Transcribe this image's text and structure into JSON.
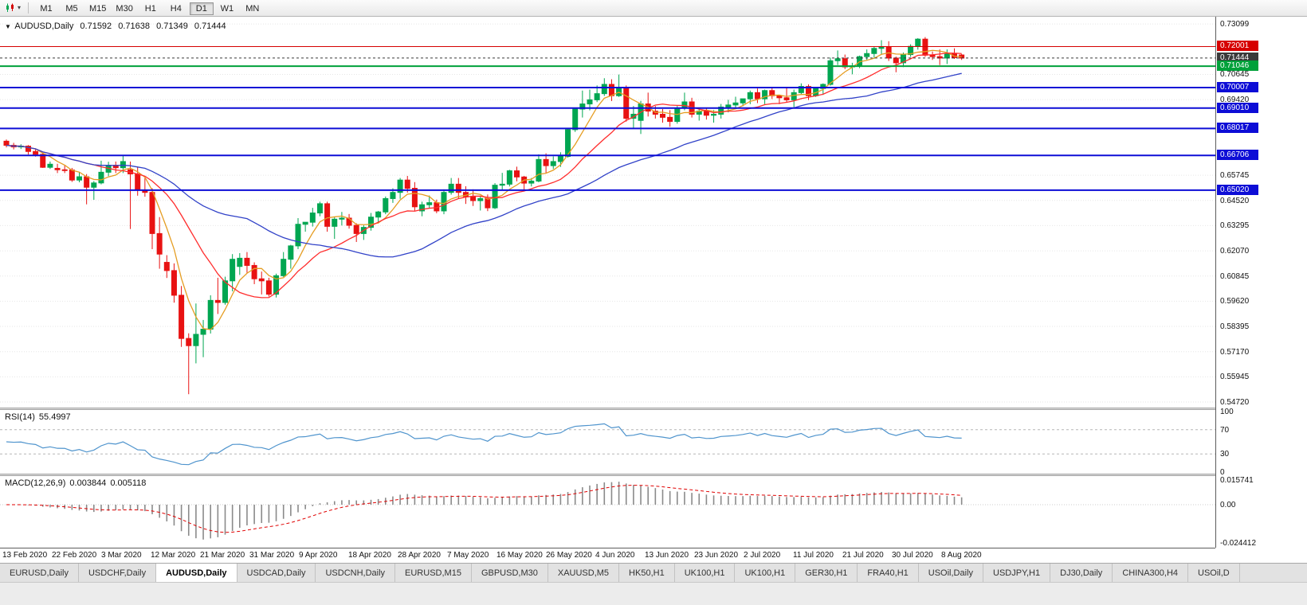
{
  "toolbar": {
    "timeframes": [
      "M1",
      "M5",
      "M15",
      "M30",
      "H1",
      "H4",
      "D1",
      "W1",
      "MN"
    ],
    "active_timeframe": "D1"
  },
  "chart_header": {
    "symbol": "AUDUSD,Daily",
    "open": "0.71592",
    "high": "0.71638",
    "low": "0.71349",
    "close": "0.71444"
  },
  "indicators": {
    "rsi": {
      "name": "RSI(14)",
      "value": "55.4997",
      "guides": [
        70,
        30
      ],
      "axis": [
        {
          "label": "100",
          "value": 100
        },
        {
          "label": "70",
          "value": 70
        },
        {
          "label": "30",
          "value": 30
        },
        {
          "label": "0",
          "value": 0
        }
      ]
    },
    "macd": {
      "name": "MACD(12,26,9)",
      "value_main": "0.003844",
      "value_signal": "0.005118",
      "axis": [
        {
          "label": "0.015741",
          "value": 0.015741
        },
        {
          "label": "0.00",
          "value": 0
        },
        {
          "label": "-0.024412",
          "value": -0.024412
        }
      ]
    }
  },
  "time_axis": [
    "13 Feb 2020",
    "22 Feb 2020",
    "3 Mar 2020",
    "12 Mar 2020",
    "21 Mar 2020",
    "31 Mar 2020",
    "9 Apr 2020",
    "18 Apr 2020",
    "28 Apr 2020",
    "7 May 2020",
    "16 May 2020",
    "26 May 2020",
    "4 Jun 2020",
    "13 Jun 2020",
    "23 Jun 2020",
    "2 Jul 2020",
    "11 Jul 2020",
    "21 Jul 2020",
    "30 Jul 2020",
    "8 Aug 2020"
  ],
  "tabs": {
    "items": [
      "EURUSD,Daily",
      "USDCHF,Daily",
      "AUDUSD,Daily",
      "USDCAD,Daily",
      "USDCNH,Daily",
      "EURUSD,M15",
      "GBPUSD,M30",
      "XAUUSD,M5",
      "HK50,H1",
      "UK100,H1",
      "UK100,H1",
      "GER30,H1",
      "FRA40,H1",
      "USOil,Daily",
      "USDJPY,H1",
      "DJ30,Daily",
      "CHINA300,H4",
      "USOil,D"
    ],
    "active": "AUDUSD,Daily"
  },
  "chart_data": {
    "type": "candlestick",
    "symbol": "AUDUSD",
    "timeframe": "Daily",
    "price_range": [
      0.5445,
      0.7345
    ],
    "colors": {
      "bull": "#00a651",
      "bear": "#e81212",
      "rsi_line": "#4f94cd",
      "macd_hist": "#8a8a8a",
      "macd_signal": "#e00000",
      "grid": "#e6e6e6",
      "resistance_red": "#d60000",
      "support_green": "#00a13a",
      "support_blue": "#0d0dd6",
      "bid_label": "#3a3a3a"
    },
    "price_ticks": [
      {
        "label": "0.73099",
        "value": 0.73099
      },
      {
        "label": "0.70645",
        "value": 0.70645
      },
      {
        "label": "0.69420",
        "value": 0.6942
      },
      {
        "label": "0.65745",
        "value": 0.65745
      },
      {
        "label": "0.64520",
        "value": 0.6452
      },
      {
        "label": "0.63295",
        "value": 0.63295
      },
      {
        "label": "0.62070",
        "value": 0.6207
      },
      {
        "label": "0.60845",
        "value": 0.60845
      },
      {
        "label": "0.59620",
        "value": 0.5962
      },
      {
        "label": "0.58395",
        "value": 0.58395
      },
      {
        "label": "0.57170",
        "value": 0.5717
      },
      {
        "label": "0.55945",
        "value": 0.55945
      },
      {
        "label": "0.54720",
        "value": 0.5472
      }
    ],
    "levels": [
      {
        "label": "0.72001",
        "price": 0.72001,
        "color": "#d60000",
        "width": 1,
        "kind": "resistance-line"
      },
      {
        "label": "0.71444",
        "price": 0.71444,
        "color": "#3a3a3a",
        "width": 1,
        "dash": true,
        "kind": "current-bid"
      },
      {
        "label": "0.71046",
        "price": 0.71046,
        "color": "#00a13a",
        "width": 2,
        "kind": "support-line"
      },
      {
        "label": "0.70007",
        "price": 0.70007,
        "color": "#0d0dd6",
        "width": 2,
        "kind": "support-line"
      },
      {
        "label": "0.69010",
        "price": 0.6901,
        "color": "#0d0dd6",
        "width": 2,
        "kind": "support-line"
      },
      {
        "label": "0.68017",
        "price": 0.68017,
        "color": "#0d0dd6",
        "width": 2,
        "kind": "support-line"
      },
      {
        "label": "0.66706",
        "price": 0.66706,
        "color": "#0d0dd6",
        "width": 2,
        "kind": "support-line"
      },
      {
        "label": "0.65020",
        "price": 0.6502,
        "color": "#0d0dd6",
        "width": 2,
        "kind": "support-line"
      }
    ],
    "moving_averages": [
      {
        "period": 5,
        "color": "#e59d22",
        "name": "fast-ma"
      },
      {
        "period": 13,
        "color": "#ff2d2d",
        "name": "medium-ma"
      },
      {
        "period": 34,
        "color": "#3142c8",
        "name": "slow-ma"
      }
    ],
    "ohlc": [
      [
        0.674,
        0.6748,
        0.671,
        0.672
      ],
      [
        0.672,
        0.6732,
        0.67,
        0.6712
      ],
      [
        0.6712,
        0.6725,
        0.6702,
        0.6716
      ],
      [
        0.6716,
        0.6721,
        0.6675,
        0.669
      ],
      [
        0.669,
        0.67,
        0.6665,
        0.6676
      ],
      [
        0.6676,
        0.6681,
        0.661,
        0.6613
      ],
      [
        0.6613,
        0.6641,
        0.6605,
        0.6628
      ],
      [
        0.6608,
        0.663,
        0.6585,
        0.6601
      ],
      [
        0.6601,
        0.6622,
        0.6585,
        0.66
      ],
      [
        0.66,
        0.661,
        0.6542,
        0.6551
      ],
      [
        0.6551,
        0.659,
        0.654,
        0.6567
      ],
      [
        0.6567,
        0.658,
        0.6433,
        0.6516
      ],
      [
        0.6516,
        0.6546,
        0.6455,
        0.6537
      ],
      [
        0.6537,
        0.6645,
        0.653,
        0.6589
      ],
      [
        0.6589,
        0.664,
        0.657,
        0.6623
      ],
      [
        0.6623,
        0.6641,
        0.6585,
        0.6611
      ],
      [
        0.6611,
        0.667,
        0.6585,
        0.6641
      ],
      [
        0.6601,
        0.6641,
        0.6313,
        0.6581
      ],
      [
        0.6581,
        0.6616,
        0.6475,
        0.6501
      ],
      [
        0.6501,
        0.6561,
        0.647,
        0.6491
      ],
      [
        0.6491,
        0.6511,
        0.6215,
        0.6291
      ],
      [
        0.6291,
        0.6371,
        0.612,
        0.6191
      ],
      [
        0.6151,
        0.6186,
        0.6075,
        0.6111
      ],
      [
        0.6111,
        0.6146,
        0.5955,
        0.5991
      ],
      [
        0.5991,
        0.6036,
        0.574,
        0.5781
      ],
      [
        0.5781,
        0.5806,
        0.551,
        0.5746
      ],
      [
        0.5746,
        0.5951,
        0.566,
        0.5801
      ],
      [
        0.5801,
        0.5871,
        0.569,
        0.5826
      ],
      [
        0.5826,
        0.5991,
        0.5805,
        0.5966
      ],
      [
        0.5966,
        0.6076,
        0.59,
        0.5956
      ],
      [
        0.5956,
        0.6081,
        0.5945,
        0.6061
      ],
      [
        0.6061,
        0.6191,
        0.601,
        0.6166
      ],
      [
        0.6131,
        0.6196,
        0.609,
        0.6171
      ],
      [
        0.6171,
        0.6201,
        0.61,
        0.6136
      ],
      [
        0.6136,
        0.6151,
        0.6045,
        0.6071
      ],
      [
        0.6071,
        0.6106,
        0.5995,
        0.6061
      ],
      [
        0.6061,
        0.6076,
        0.5985,
        0.5996
      ],
      [
        0.5996,
        0.6096,
        0.598,
        0.6086
      ],
      [
        0.6086,
        0.6201,
        0.608,
        0.6166
      ],
      [
        0.6166,
        0.6236,
        0.612,
        0.6231
      ],
      [
        0.6231,
        0.6366,
        0.6215,
        0.6336
      ],
      [
        0.6336,
        0.6346,
        0.63,
        0.6346
      ],
      [
        0.6346,
        0.6416,
        0.6325,
        0.6391
      ],
      [
        0.6391,
        0.6446,
        0.6375,
        0.6436
      ],
      [
        0.6436,
        0.6446,
        0.63,
        0.6326
      ],
      [
        0.6326,
        0.6371,
        0.6265,
        0.6361
      ],
      [
        0.6361,
        0.6396,
        0.633,
        0.6366
      ],
      [
        0.6366,
        0.6386,
        0.6315,
        0.6331
      ],
      [
        0.6331,
        0.6341,
        0.625,
        0.6291
      ],
      [
        0.6291,
        0.6331,
        0.626,
        0.6321
      ],
      [
        0.6321,
        0.6391,
        0.6305,
        0.6371
      ],
      [
        0.6371,
        0.6401,
        0.634,
        0.6396
      ],
      [
        0.6396,
        0.6471,
        0.6385,
        0.6461
      ],
      [
        0.6461,
        0.6511,
        0.644,
        0.6491
      ],
      [
        0.6491,
        0.6561,
        0.646,
        0.6551
      ],
      [
        0.6551,
        0.6571,
        0.649,
        0.6511
      ],
      [
        0.6511,
        0.6541,
        0.64,
        0.6421
      ],
      [
        0.6401,
        0.6446,
        0.6375,
        0.6431
      ],
      [
        0.6431,
        0.6476,
        0.6415,
        0.6441
      ],
      [
        0.6441,
        0.6456,
        0.639,
        0.6401
      ],
      [
        0.6401,
        0.6506,
        0.6385,
        0.6491
      ],
      [
        0.6491,
        0.6561,
        0.648,
        0.6531
      ],
      [
        0.6531,
        0.6561,
        0.646,
        0.6491
      ],
      [
        0.6491,
        0.6521,
        0.6435,
        0.6471
      ],
      [
        0.6471,
        0.6506,
        0.6425,
        0.6451
      ],
      [
        0.6451,
        0.6476,
        0.6403,
        0.6461
      ],
      [
        0.6461,
        0.6481,
        0.64,
        0.6416
      ],
      [
        0.6416,
        0.6536,
        0.641,
        0.6526
      ],
      [
        0.6526,
        0.6586,
        0.6505,
        0.6531
      ],
      [
        0.6531,
        0.6601,
        0.652,
        0.6596
      ],
      [
        0.6596,
        0.6616,
        0.6545,
        0.6566
      ],
      [
        0.6566,
        0.6571,
        0.6505,
        0.6536
      ],
      [
        0.6536,
        0.6561,
        0.652,
        0.6546
      ],
      [
        0.6546,
        0.6676,
        0.654,
        0.6651
      ],
      [
        0.6651,
        0.6681,
        0.6585,
        0.6621
      ],
      [
        0.6621,
        0.6666,
        0.6605,
        0.6641
      ],
      [
        0.6641,
        0.6686,
        0.6615,
        0.6666
      ],
      [
        0.6666,
        0.6801,
        0.666,
        0.6796
      ],
      [
        0.6796,
        0.6901,
        0.6785,
        0.6896
      ],
      [
        0.6896,
        0.6986,
        0.6855,
        0.6921
      ],
      [
        0.6921,
        0.6991,
        0.689,
        0.6941
      ],
      [
        0.6941,
        0.7011,
        0.693,
        0.6971
      ],
      [
        0.6971,
        0.7046,
        0.696,
        0.7016
      ],
      [
        0.7016,
        0.7041,
        0.6935,
        0.6961
      ],
      [
        0.6961,
        0.7064,
        0.6955,
        0.7001
      ],
      [
        0.7001,
        0.7011,
        0.6835,
        0.6851
      ],
      [
        0.6851,
        0.6911,
        0.68,
        0.6871
      ],
      [
        0.6841,
        0.6936,
        0.6775,
        0.6921
      ],
      [
        0.6921,
        0.6976,
        0.686,
        0.6886
      ],
      [
        0.6886,
        0.6911,
        0.685,
        0.6871
      ],
      [
        0.6871,
        0.6896,
        0.683,
        0.6856
      ],
      [
        0.6856,
        0.6891,
        0.681,
        0.6836
      ],
      [
        0.6836,
        0.6911,
        0.6825,
        0.6901
      ],
      [
        0.6901,
        0.6976,
        0.689,
        0.6931
      ],
      [
        0.6931,
        0.6951,
        0.6855,
        0.6871
      ],
      [
        0.6871,
        0.6896,
        0.684,
        0.6886
      ],
      [
        0.6886,
        0.6901,
        0.6845,
        0.6866
      ],
      [
        0.6866,
        0.6891,
        0.683,
        0.6871
      ],
      [
        0.6871,
        0.6921,
        0.685,
        0.6906
      ],
      [
        0.6906,
        0.6941,
        0.688,
        0.6916
      ],
      [
        0.6916,
        0.6956,
        0.69,
        0.6926
      ],
      [
        0.6926,
        0.6946,
        0.691,
        0.6946
      ],
      [
        0.6946,
        0.6986,
        0.692,
        0.6976
      ],
      [
        0.6976,
        0.6996,
        0.6925,
        0.6946
      ],
      [
        0.6946,
        0.6991,
        0.692,
        0.6986
      ],
      [
        0.6986,
        0.7001,
        0.6945,
        0.6961
      ],
      [
        0.6961,
        0.6966,
        0.692,
        0.6951
      ],
      [
        0.6951,
        0.7001,
        0.693,
        0.6941
      ],
      [
        0.6941,
        0.6991,
        0.6905,
        0.6976
      ],
      [
        0.6976,
        0.7021,
        0.6965,
        0.7006
      ],
      [
        0.7006,
        0.7016,
        0.694,
        0.6961
      ],
      [
        0.6961,
        0.7001,
        0.6955,
        0.6996
      ],
      [
        0.6996,
        0.7021,
        0.6965,
        0.7016
      ],
      [
        0.7016,
        0.7146,
        0.701,
        0.7131
      ],
      [
        0.7131,
        0.7181,
        0.711,
        0.7141
      ],
      [
        0.7141,
        0.7161,
        0.709,
        0.7101
      ],
      [
        0.7101,
        0.7121,
        0.7065,
        0.7106
      ],
      [
        0.7106,
        0.7156,
        0.7095,
        0.7151
      ],
      [
        0.7151,
        0.7186,
        0.7135,
        0.7166
      ],
      [
        0.7166,
        0.7201,
        0.714,
        0.7191
      ],
      [
        0.7191,
        0.7231,
        0.716,
        0.7196
      ],
      [
        0.7196,
        0.7226,
        0.713,
        0.7144
      ],
      [
        0.7144,
        0.7151,
        0.7075,
        0.7121
      ],
      [
        0.7121,
        0.7171,
        0.71,
        0.7161
      ],
      [
        0.7161,
        0.7211,
        0.715,
        0.7201
      ],
      [
        0.7201,
        0.7241,
        0.7185,
        0.7236
      ],
      [
        0.7236,
        0.7246,
        0.715,
        0.7158
      ],
      [
        0.7158,
        0.7176,
        0.7135,
        0.7151
      ],
      [
        0.7151,
        0.7186,
        0.711,
        0.7144
      ],
      [
        0.7144,
        0.7186,
        0.7115,
        0.7166
      ],
      [
        0.7166,
        0.7191,
        0.714,
        0.7146
      ],
      [
        0.7159,
        0.7164,
        0.7135,
        0.7144
      ]
    ]
  }
}
